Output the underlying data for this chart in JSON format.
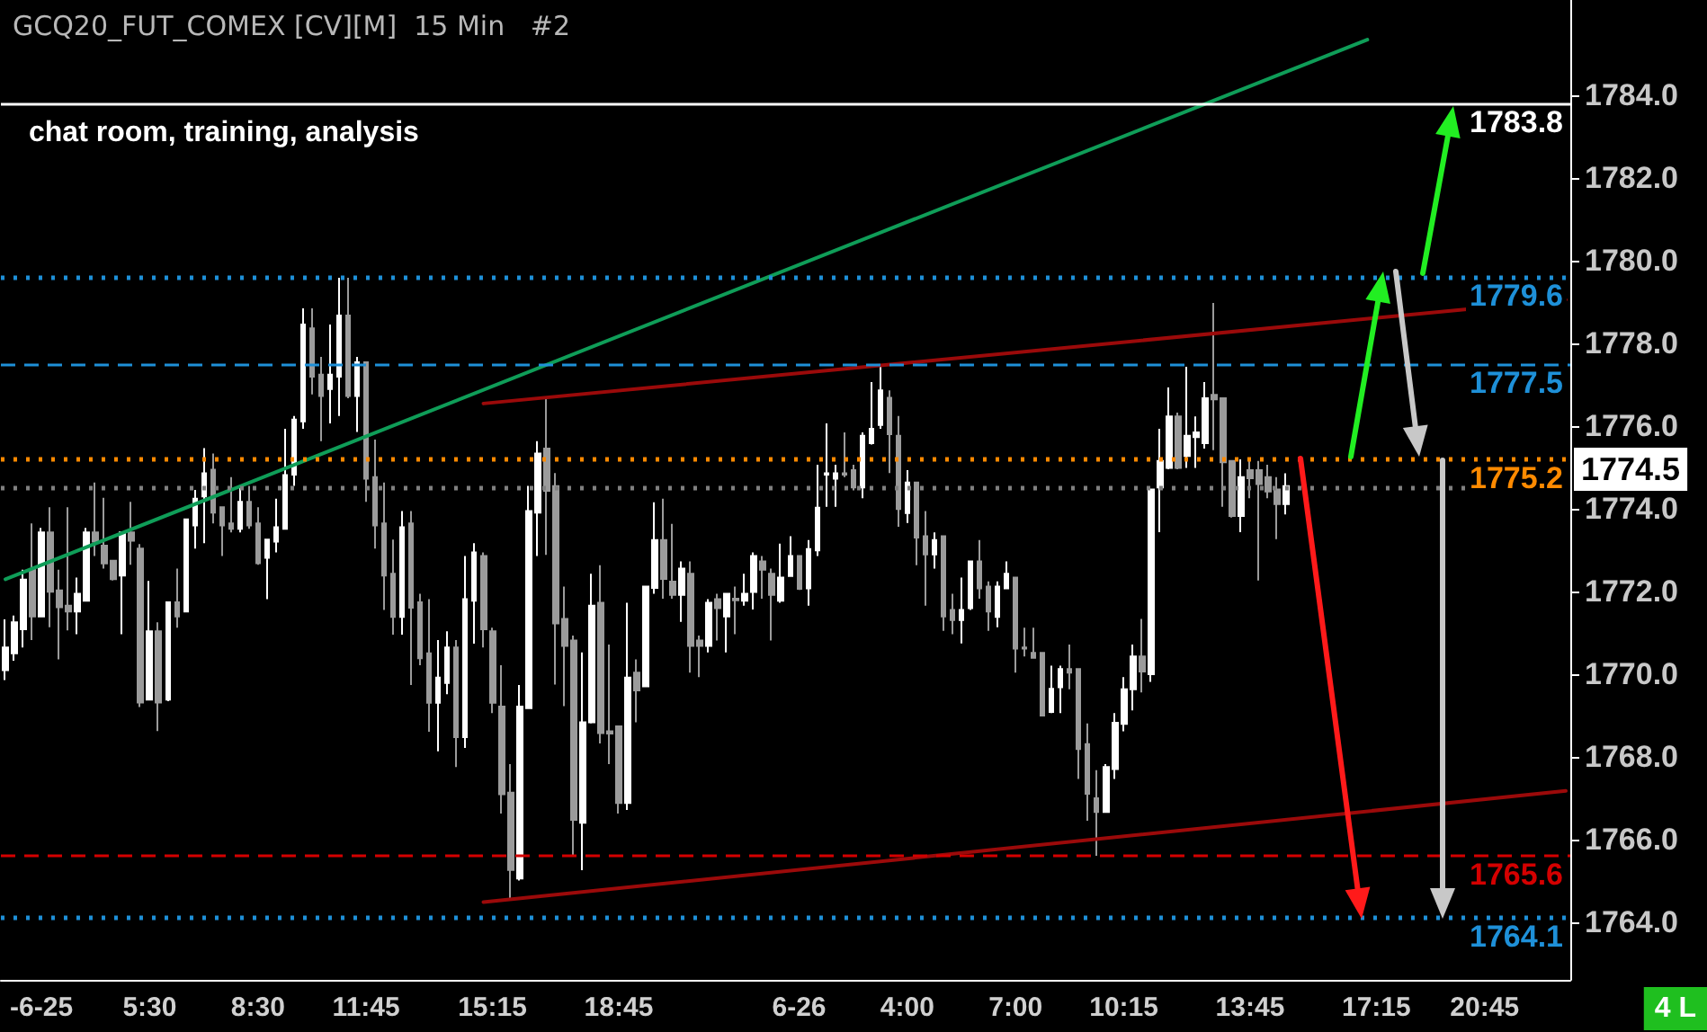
{
  "chart_data": {
    "type": "candlestick",
    "title": "GCQ20_FUT_COMEX [CV][M]  15 Min   #2",
    "categories": [
      null,
      null,
      null,
      null,
      "-6-25",
      null,
      null,
      null,
      null,
      null,
      null,
      null,
      null,
      null,
      null,
      null,
      "5:30",
      null,
      null,
      null,
      null,
      null,
      null,
      null,
      null,
      null,
      null,
      null,
      "8:30",
      null,
      null,
      null,
      null,
      null,
      null,
      null,
      null,
      null,
      null,
      null,
      "11:45",
      null,
      null,
      null,
      null,
      null,
      null,
      null,
      null,
      null,
      null,
      null,
      null,
      null,
      "15:15",
      null,
      null,
      null,
      null,
      null,
      null,
      null,
      null,
      null,
      null,
      null,
      null,
      null,
      "18:45",
      null,
      null,
      null,
      null,
      null,
      null,
      null,
      null,
      null,
      null,
      null,
      null,
      null,
      null,
      null,
      null,
      null,
      null,
      null,
      "6-26",
      null,
      null,
      null,
      null,
      null,
      null,
      null,
      null,
      null,
      null,
      null,
      "4:00",
      null,
      null,
      null,
      null,
      null,
      null,
      null,
      null,
      null,
      null,
      null,
      "7:00",
      null,
      null,
      null,
      null,
      null,
      null,
      null,
      null,
      null,
      null,
      null,
      "10:15",
      null,
      null,
      null,
      null,
      null,
      null,
      null,
      null,
      null,
      null,
      null,
      null,
      null,
      "13:45",
      null,
      null,
      null,
      null,
      null,
      null,
      null,
      null,
      null,
      null,
      null,
      null,
      null,
      "17:15",
      null,
      null,
      null,
      null,
      null,
      null,
      null,
      null,
      null,
      null,
      null,
      "20:45",
      null,
      null,
      null,
      null,
      null,
      null,
      null,
      null,
      null
    ],
    "ohlc": [
      [
        1770.09,
        1771.32,
        1769.85,
        1770.64
      ],
      [
        1770.5,
        1771.41,
        1770.32,
        1771.25
      ],
      [
        1771.08,
        1772.52,
        1770.64,
        1772.28
      ],
      [
        1772.52,
        1773.64,
        1770.82,
        1771.39
      ],
      [
        1771.39,
        1773.53,
        1771.37,
        1773.42
      ],
      [
        1773.42,
        1774.03,
        1771.13,
        1771.99
      ],
      [
        1772.02,
        1772.52,
        1770.35,
        1771.61
      ],
      [
        1771.65,
        1774.03,
        1771.05,
        1771.51
      ],
      [
        1771.51,
        1772.33,
        1770.96,
        1771.94
      ],
      [
        1771.77,
        1773.53,
        1771.77,
        1773.42
      ],
      [
        1773.42,
        1774.63,
        1772.85,
        1773.2
      ],
      [
        1773.1,
        1774.26,
        1772.55,
        1772.67
      ],
      [
        1772.74,
        1772.74,
        1772.26,
        1772.29
      ],
      [
        1772.38,
        1773.42,
        1770.96,
        1773.42
      ],
      [
        1773.42,
        1774.16,
        1772.64,
        1773.22
      ],
      [
        1773.03,
        1773.14,
        1769.2,
        1769.31
      ],
      [
        1769.38,
        1772.25,
        1769.38,
        1771.03
      ],
      [
        1771.03,
        1771.25,
        1768.62,
        1769.31
      ],
      [
        1769.38,
        1771.73,
        1769.34,
        1771.73
      ],
      [
        1771.73,
        1772.55,
        1771.12,
        1771.39
      ],
      [
        1771.51,
        1773.74,
        1771.51,
        1773.74
      ],
      [
        1773.59,
        1774.45,
        1773.03,
        1774.24
      ],
      [
        1774.29,
        1775.46,
        1773.16,
        1774.85
      ],
      [
        1774.94,
        1775.33,
        1773.64,
        1773.9
      ],
      [
        1774.03,
        1774.03,
        1772.85,
        1773.59
      ],
      [
        1773.64,
        1774.76,
        1773.42,
        1773.51
      ],
      [
        1773.51,
        1774.55,
        1773.42,
        1774.16
      ],
      [
        1774.16,
        1774.55,
        1773.51,
        1773.59
      ],
      [
        1773.64,
        1774.03,
        1772.64,
        1772.68
      ],
      [
        1772.81,
        1773.25,
        1771.81,
        1773.25
      ],
      [
        1773.2,
        1774.24,
        1772.94,
        1773.55
      ],
      [
        1773.51,
        1775.93,
        1773.51,
        1774.81
      ],
      [
        1774.82,
        1776.24,
        1774.55,
        1776.15
      ],
      [
        1776.11,
        1778.84,
        1775.93,
        1778.45
      ],
      [
        1778.36,
        1778.84,
        1776.76,
        1777.19
      ],
      [
        1777.24,
        1777.67,
        1775.63,
        1776.72
      ],
      [
        1776.89,
        1778.45,
        1776.06,
        1777.24
      ],
      [
        1777.19,
        1779.58,
        1776.24,
        1778.67
      ],
      [
        1778.67,
        1779.58,
        1776.67,
        1776.72
      ],
      [
        1776.72,
        1777.67,
        1775.85,
        1777.54
      ],
      [
        1777.54,
        1777.54,
        1774.16,
        1774.72
      ],
      [
        1774.76,
        1775.67,
        1773.03,
        1773.59
      ],
      [
        1773.64,
        1774.63,
        1771.55,
        1772.38
      ],
      [
        1772.42,
        1773.25,
        1770.95,
        1771.38
      ],
      [
        1771.38,
        1773.94,
        1770.95,
        1773.55
      ],
      [
        1773.64,
        1773.94,
        1769.73,
        1771.6
      ],
      [
        1771.73,
        1771.94,
        1770.21,
        1770.38
      ],
      [
        1770.5,
        1771.81,
        1768.6,
        1769.3
      ],
      [
        1769.3,
        1770.82,
        1768.13,
        1769.91
      ],
      [
        1769.78,
        1771.03,
        1769.51,
        1770.64
      ],
      [
        1770.64,
        1770.82,
        1767.75,
        1768.47
      ],
      [
        1768.47,
        1772.85,
        1768.21,
        1771.81
      ],
      [
        1771.77,
        1773.16,
        1770.73,
        1772.94
      ],
      [
        1772.85,
        1772.94,
        1770.64,
        1771.08
      ],
      [
        1771.03,
        1771.12,
        1769.05,
        1769.3
      ],
      [
        1769.21,
        1770.21,
        1766.62,
        1767.09
      ],
      [
        1767.13,
        1767.82,
        1764.57,
        1765.26
      ],
      [
        1765.05,
        1769.73,
        1765.0,
        1769.21
      ],
      [
        1769.17,
        1774.55,
        1769.17,
        1773.94
      ],
      [
        1773.9,
        1775.63,
        1772.85,
        1775.33
      ],
      [
        1775.45,
        1776.68,
        1772.88,
        1774.43
      ],
      [
        1774.54,
        1774.86,
        1769.74,
        1771.22
      ],
      [
        1771.33,
        1772.11,
        1769.22,
        1770.68
      ],
      [
        1770.81,
        1770.93,
        1765.61,
        1766.47
      ],
      [
        1766.4,
        1770.52,
        1765.25,
        1768.83
      ],
      [
        1768.83,
        1772.42,
        1768.8,
        1771.65
      ],
      [
        1771.72,
        1772.63,
        1768.32,
        1768.57
      ],
      [
        1768.61,
        1770.71,
        1767.82,
        1768.56
      ],
      [
        1768.73,
        1768.73,
        1766.62,
        1766.88
      ],
      [
        1766.88,
        1771.72,
        1766.71,
        1769.91
      ],
      [
        1770.03,
        1770.35,
        1768.83,
        1769.6
      ],
      [
        1769.7,
        1772.11,
        1769.7,
        1772.11
      ],
      [
        1772.08,
        1774.15,
        1771.94,
        1773.24
      ],
      [
        1773.24,
        1774.24,
        1771.82,
        1772.3
      ],
      [
        1772.23,
        1773.63,
        1771.82,
        1771.91
      ],
      [
        1771.91,
        1772.72,
        1771.26,
        1772.55
      ],
      [
        1772.42,
        1772.72,
        1770.03,
        1770.68
      ],
      [
        1770.81,
        1770.93,
        1769.92,
        1770.68
      ],
      [
        1770.68,
        1771.81,
        1770.52,
        1771.72
      ],
      [
        1771.81,
        1771.94,
        1770.81,
        1771.59
      ],
      [
        1771.39,
        1771.94,
        1770.52,
        1771.94
      ],
      [
        1771.82,
        1772.11,
        1770.96,
        1771.78
      ],
      [
        1771.77,
        1772.42,
        1771.65,
        1771.94
      ],
      [
        1771.98,
        1772.94,
        1771.56,
        1772.85
      ],
      [
        1772.72,
        1772.85,
        1771.82,
        1772.52
      ],
      [
        1772.42,
        1772.55,
        1770.81,
        1771.91
      ],
      [
        1771.77,
        1773.15,
        1771.72,
        1772.33
      ],
      [
        1772.37,
        1773.33,
        1772.37,
        1772.85
      ],
      [
        1772.85,
        1772.85,
        1772.03,
        1772.06
      ],
      [
        1772.07,
        1773.24,
        1771.65,
        1773.02
      ],
      [
        1772.99,
        1775.06,
        1772.85,
        1774.02
      ],
      [
        1774.82,
        1776.06,
        1774.04,
        1774.85
      ],
      [
        1774.72,
        1775.06,
        1774.04,
        1774.85
      ],
      [
        1774.85,
        1775.84,
        1774.76,
        1774.82
      ],
      [
        1774.93,
        1775.06,
        1774.44,
        1774.51
      ],
      [
        1774.51,
        1775.84,
        1774.25,
        1775.76
      ],
      [
        1775.58,
        1777.06,
        1775.55,
        1775.93
      ],
      [
        1776.02,
        1777.46,
        1775.93,
        1776.86
      ],
      [
        1776.68,
        1776.86,
        1774.86,
        1775.8
      ],
      [
        1775.76,
        1776.24,
        1773.56,
        1773.99
      ],
      [
        1773.89,
        1774.93,
        1773.65,
        1774.63
      ],
      [
        1774.63,
        1774.63,
        1772.63,
        1773.3
      ],
      [
        1773.33,
        1773.94,
        1771.65,
        1772.89
      ],
      [
        1772.89,
        1773.42,
        1772.55,
        1773.24
      ],
      [
        1773.33,
        1773.33,
        1771.04,
        1771.39
      ],
      [
        1771.55,
        1771.94,
        1770.96,
        1771.3
      ],
      [
        1771.3,
        1772.33,
        1770.74,
        1771.55
      ],
      [
        1771.59,
        1772.72,
        1771.55,
        1772.72
      ],
      [
        1772.72,
        1773.24,
        1771.82,
        1772.07
      ],
      [
        1772.11,
        1772.24,
        1771.04,
        1771.51
      ],
      [
        1771.38,
        1772.24,
        1771.13,
        1772.11
      ],
      [
        1772.07,
        1772.72,
        1772.07,
        1772.42
      ],
      [
        1772.33,
        1772.33,
        1770.03,
        1770.61
      ],
      [
        1770.64,
        1771.12,
        1770.42,
        1770.61
      ],
      [
        1770.51,
        1771.12,
        1770.39,
        1770.39
      ],
      [
        1770.51,
        1770.51,
        1768.99,
        1768.99
      ],
      [
        1769.08,
        1770.2,
        1769.05,
        1769.64
      ],
      [
        1769.68,
        1770.2,
        1769.05,
        1770.12
      ],
      [
        1770.12,
        1770.71,
        1769.63,
        1770.03
      ],
      [
        1770.12,
        1770.12,
        1767.46,
        1768.18
      ],
      [
        1768.3,
        1768.8,
        1766.45,
        1767.1
      ],
      [
        1766.99,
        1767.67,
        1765.6,
        1766.66
      ],
      [
        1766.66,
        1767.82,
        1766.66,
        1767.75
      ],
      [
        1767.7,
        1769.05,
        1767.46,
        1768.82
      ],
      [
        1768.79,
        1769.92,
        1768.61,
        1769.63
      ],
      [
        1769.63,
        1770.71,
        1769.12,
        1770.42
      ],
      [
        1770.42,
        1771.33,
        1769.55,
        1770.06
      ],
      [
        1769.99,
        1774.46,
        1769.81,
        1774.46
      ],
      [
        1774.51,
        1775.93,
        1773.43,
        1775.15
      ],
      [
        1774.98,
        1776.93,
        1774.95,
        1776.23
      ],
      [
        1776.23,
        1776.32,
        1774.95,
        1774.98
      ],
      [
        1775.27,
        1777.43,
        1774.98,
        1775.76
      ],
      [
        1775.73,
        1776.23,
        1774.98,
        1775.84
      ],
      [
        1775.58,
        1777.06,
        1775.45,
        1776.67
      ],
      [
        1776.75,
        1778.97,
        1775.41,
        1776.64
      ],
      [
        1776.67,
        1776.67,
        1774.04,
        1775.12
      ],
      [
        1775.15,
        1775.15,
        1773.78,
        1773.82
      ],
      [
        1773.82,
        1775.19,
        1773.43,
        1774.76
      ],
      [
        1774.93,
        1775.15,
        1774.25,
        1774.73
      ],
      [
        1774.93,
        1775.15,
        1772.26,
        1774.59
      ],
      [
        1774.76,
        1775.06,
        1774.25,
        1774.41
      ],
      [
        1774.46,
        1774.76,
        1773.26,
        1774.11
      ],
      [
        1774.11,
        1774.85,
        1773.86,
        1774.54
      ],
      null,
      null,
      null,
      null,
      null,
      null,
      null,
      null,
      null,
      null,
      null,
      null,
      null,
      null,
      null,
      null,
      null,
      null,
      null,
      null,
      null,
      null,
      null,
      null,
      null,
      null,
      null,
      null,
      null,
      null,
      null
    ],
    "colors": [
      "#ffffff",
      "#ffffff",
      "#ffffff",
      "#9b9b9b",
      "#ffffff",
      "#9b9b9b",
      "#9b9b9b",
      "#9b9b9b",
      "#ffffff",
      "#ffffff",
      "#9b9b9b",
      "#9b9b9b",
      "#9b9b9b",
      "#ffffff",
      "#9b9b9b",
      "#9b9b9b",
      "#ffffff",
      "#9b9b9b",
      "#ffffff",
      "#9b9b9b",
      "#ffffff",
      "#ffffff",
      "#ffffff",
      "#9b9b9b",
      "#9b9b9b",
      "#9b9b9b",
      "#ffffff",
      "#9b9b9b",
      "#9b9b9b",
      "#ffffff",
      "#ffffff",
      "#ffffff",
      "#ffffff",
      "#ffffff",
      "#9b9b9b",
      "#9b9b9b",
      "#ffffff",
      "#ffffff",
      "#9b9b9b",
      "#ffffff",
      "#9b9b9b",
      "#9b9b9b",
      "#9b9b9b",
      "#9b9b9b",
      "#ffffff",
      "#9b9b9b",
      "#9b9b9b",
      "#9b9b9b",
      "#ffffff",
      "#ffffff",
      "#9b9b9b",
      "#ffffff",
      "#ffffff",
      "#9b9b9b",
      "#9b9b9b",
      "#9b9b9b",
      "#9b9b9b",
      "#ffffff",
      "#ffffff",
      "#ffffff",
      "#9b9b9b",
      "#9b9b9b",
      "#9b9b9b",
      "#9b9b9b",
      "#ffffff",
      "#ffffff",
      "#9b9b9b",
      "#9b9b9b",
      "#9b9b9b",
      "#ffffff",
      "#9b9b9b",
      "#ffffff",
      "#ffffff",
      "#9b9b9b",
      "#9b9b9b",
      "#ffffff",
      "#9b9b9b",
      "#9b9b9b",
      "#ffffff",
      "#9b9b9b",
      "#ffffff",
      "#9b9b9b",
      "#ffffff",
      "#ffffff",
      "#9b9b9b",
      "#9b9b9b",
      "#ffffff",
      "#ffffff",
      "#9b9b9b",
      "#ffffff",
      "#ffffff",
      "#ffffff",
      "#ffffff",
      "#9b9b9b",
      "#9b9b9b",
      "#ffffff",
      "#ffffff",
      "#ffffff",
      "#9b9b9b",
      "#9b9b9b",
      "#ffffff",
      "#9b9b9b",
      "#9b9b9b",
      "#ffffff",
      "#9b9b9b",
      "#9b9b9b",
      "#ffffff",
      "#ffffff",
      "#9b9b9b",
      "#9b9b9b",
      "#ffffff",
      "#ffffff",
      "#9b9b9b",
      "#9b9b9b",
      "#9b9b9b",
      "#9b9b9b",
      "#ffffff",
      "#ffffff",
      "#9b9b9b",
      "#9b9b9b",
      "#9b9b9b",
      "#9b9b9b",
      "#ffffff",
      "#ffffff",
      "#ffffff",
      "#ffffff",
      "#9b9b9b",
      "#ffffff",
      "#ffffff",
      "#ffffff",
      "#9b9b9b",
      "#ffffff",
      "#ffffff",
      "#ffffff",
      "#9b9b9b",
      "#9b9b9b",
      "#9b9b9b",
      "#ffffff",
      "#9b9b9b",
      "#9b9b9b",
      "#9b9b9b",
      "#9b9b9b",
      "#ffffff",
      null,
      null,
      null,
      null,
      null,
      null,
      null,
      null,
      null,
      null,
      null,
      null,
      null,
      null,
      null,
      null,
      null,
      null,
      null,
      null,
      null,
      null,
      null,
      null,
      null,
      null,
      null,
      null,
      null,
      null,
      null
    ],
    "series": [
      {
        "type": "line",
        "color": "#0f9d58",
        "values": [
          1772.29,
          null,
          null,
          null,
          null,
          null,
          null,
          null,
          null,
          null,
          null,
          null,
          null,
          null,
          null,
          null,
          null,
          null,
          null,
          null,
          null,
          null,
          null,
          null,
          null,
          null,
          null,
          null,
          null,
          null,
          null,
          null,
          null,
          null,
          null,
          null,
          null,
          null,
          null,
          null,
          null,
          null,
          null,
          null,
          null,
          null,
          null,
          null,
          null,
          null,
          null,
          null,
          null,
          null,
          null,
          null,
          null,
          null,
          null,
          null,
          null,
          null,
          null,
          null,
          null,
          null,
          null,
          null,
          null,
          null,
          null,
          null,
          null,
          null,
          null,
          null,
          null,
          null,
          null,
          null,
          null,
          null,
          null,
          null,
          null,
          null,
          null,
          null,
          null,
          null,
          null,
          null,
          null,
          null,
          null,
          null,
          null,
          null,
          null,
          null,
          null,
          null,
          null,
          null,
          null,
          null,
          null,
          null,
          null,
          null,
          null,
          null,
          null,
          null,
          null,
          null,
          null,
          null,
          null,
          null,
          null,
          null,
          null,
          null,
          null,
          null,
          null,
          null,
          null,
          null,
          null,
          null,
          null,
          null,
          null,
          null,
          null,
          null,
          null,
          null,
          null,
          null,
          null,
          null,
          null,
          null,
          null,
          null,
          null,
          null,
          null,
          1785.34,
          null,
          null,
          null,
          null,
          null,
          null,
          null,
          null,
          null,
          null,
          null,
          null,
          null,
          null,
          null,
          null,
          null,
          null,
          null,
          null,
          null,
          null
        ]
      },
      {
        "type": "line",
        "color": "#9b0a0a",
        "values": [
          null,
          null,
          null,
          null,
          null,
          null,
          null,
          null,
          null,
          null,
          null,
          null,
          null,
          null,
          null,
          null,
          null,
          null,
          null,
          null,
          null,
          null,
          null,
          null,
          null,
          null,
          null,
          null,
          null,
          null,
          null,
          null,
          null,
          null,
          null,
          null,
          null,
          null,
          null,
          null,
          null,
          null,
          null,
          null,
          null,
          null,
          null,
          null,
          null,
          null,
          null,
          null,
          null,
          1776.54,
          null,
          null,
          null,
          null,
          null,
          null,
          null,
          null,
          null,
          null,
          null,
          null,
          null,
          null,
          null,
          null,
          null,
          null,
          null,
          null,
          null,
          null,
          null,
          null,
          null,
          null,
          null,
          null,
          null,
          null,
          null,
          null,
          null,
          null,
          null,
          null,
          null,
          null,
          null,
          null,
          null,
          null,
          null,
          null,
          null,
          null,
          null,
          null,
          null,
          null,
          null,
          null,
          null,
          null,
          null,
          null,
          null,
          null,
          null,
          null,
          null,
          null,
          null,
          null,
          null,
          null,
          null,
          null,
          null,
          null,
          null,
          null,
          null,
          null,
          null,
          null,
          null,
          null,
          null,
          null,
          null,
          null,
          null,
          null,
          null,
          null,
          null,
          null,
          null,
          null,
          null,
          null,
          null,
          null,
          null,
          null,
          null,
          null,
          null,
          null,
          null,
          null,
          null,
          null,
          null,
          null,
          null,
          null,
          null,
          null,
          null,
          null,
          null,
          null,
          null,
          null,
          null,
          null,
          null,
          1779.05
        ]
      },
      {
        "type": "line",
        "color": "#9b0a0a",
        "values": [
          null,
          null,
          null,
          null,
          null,
          null,
          null,
          null,
          null,
          null,
          null,
          null,
          null,
          null,
          null,
          null,
          null,
          null,
          null,
          null,
          null,
          null,
          null,
          null,
          null,
          null,
          null,
          null,
          null,
          null,
          null,
          null,
          null,
          null,
          null,
          null,
          null,
          null,
          null,
          null,
          null,
          null,
          null,
          null,
          null,
          null,
          null,
          null,
          null,
          null,
          null,
          null,
          null,
          1764.48,
          null,
          null,
          null,
          null,
          null,
          null,
          null,
          null,
          null,
          null,
          null,
          null,
          null,
          null,
          null,
          null,
          null,
          null,
          null,
          null,
          null,
          null,
          null,
          null,
          null,
          null,
          null,
          null,
          null,
          null,
          null,
          null,
          null,
          null,
          null,
          null,
          null,
          null,
          null,
          null,
          null,
          null,
          null,
          null,
          null,
          null,
          null,
          null,
          null,
          null,
          null,
          null,
          null,
          null,
          null,
          null,
          null,
          null,
          null,
          null,
          null,
          null,
          null,
          null,
          null,
          null,
          null,
          null,
          null,
          null,
          null,
          null,
          null,
          null,
          null,
          null,
          null,
          null,
          null,
          null,
          null,
          null,
          null,
          null,
          null,
          null,
          null,
          null,
          null,
          null,
          null,
          null,
          null,
          null,
          null,
          null,
          null,
          null,
          null,
          null,
          null,
          null,
          null,
          null,
          null,
          null,
          null,
          null,
          null,
          null,
          null,
          null,
          null,
          null,
          null,
          null,
          null,
          null,
          null,
          1767.17
        ]
      }
    ],
    "ref_lines": [
      {
        "axis": "y",
        "value": 1783.8,
        "label": "1783.8",
        "color": "#ffffff",
        "line_style": "solid"
      },
      {
        "axis": "y",
        "value": 1779.6,
        "label": "1779.6",
        "color": "#1e90d8",
        "line_style": "dotted"
      },
      {
        "axis": "y",
        "value": 1777.5,
        "label": "1777.5",
        "color": "#1e90d8",
        "line_style": "dashed"
      },
      {
        "axis": "y",
        "value": 1775.2,
        "label": "1775.2",
        "color": "#ff8a00",
        "line_style": "dotted"
      },
      {
        "axis": "y",
        "value": 1774.5,
        "color": "#808080",
        "line_style": "dotted"
      },
      {
        "axis": "y",
        "value": 1765.6,
        "label": "1765.6",
        "color": "#d40000",
        "line_style": "dashed"
      },
      {
        "axis": "y",
        "value": 1764.1,
        "label": "1764.1",
        "color": "#1e90d8",
        "line_style": "dotted"
      }
    ],
    "annotations": [
      "chat room, training, analysis",
      "4 L",
      "1774.5"
    ],
    "ylim": [
      1762.6,
      1786.3
    ],
    "yticks": [
      {
        "value": 1764,
        "label": "1764.0"
      },
      {
        "value": 1766,
        "label": "1766.0"
      },
      {
        "value": 1768,
        "label": "1768.0"
      },
      {
        "value": 1770,
        "label": "1770.0"
      },
      {
        "value": 1772,
        "label": "1772.0"
      },
      {
        "value": 1774,
        "label": "1774.0"
      },
      {
        "value": 1776,
        "label": "1776.0"
      },
      {
        "value": 1778,
        "label": "1778.0"
      },
      {
        "value": 1780,
        "label": "1780.0"
      },
      {
        "value": 1782,
        "label": "1782.0"
      },
      {
        "value": 1784,
        "label": "1784.0"
      }
    ]
  }
}
